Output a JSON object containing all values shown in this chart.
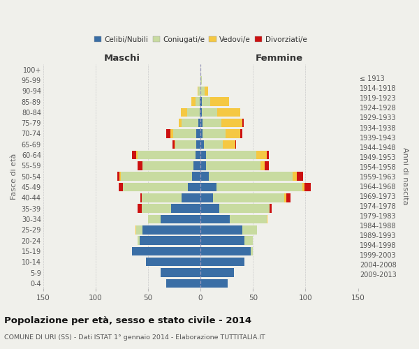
{
  "age_groups": [
    "0-4",
    "5-9",
    "10-14",
    "15-19",
    "20-24",
    "25-29",
    "30-34",
    "35-39",
    "40-44",
    "45-49",
    "50-54",
    "55-59",
    "60-64",
    "65-69",
    "70-74",
    "75-79",
    "80-84",
    "85-89",
    "90-94",
    "95-99",
    "100+"
  ],
  "birth_years": [
    "2009-2013",
    "2004-2008",
    "1999-2003",
    "1994-1998",
    "1989-1993",
    "1984-1988",
    "1979-1983",
    "1974-1978",
    "1969-1973",
    "1964-1968",
    "1959-1963",
    "1954-1958",
    "1949-1953",
    "1944-1948",
    "1939-1943",
    "1934-1938",
    "1929-1933",
    "1924-1928",
    "1919-1923",
    "1914-1918",
    "≤ 1913"
  ],
  "male": {
    "celibi": [
      33,
      38,
      52,
      65,
      58,
      55,
      38,
      28,
      18,
      12,
      8,
      7,
      5,
      4,
      4,
      2,
      1,
      1,
      0,
      0,
      0
    ],
    "coniugati": [
      0,
      0,
      0,
      0,
      2,
      6,
      12,
      28,
      38,
      62,
      68,
      48,
      55,
      20,
      22,
      16,
      12,
      4,
      2,
      0,
      0
    ],
    "vedovi": [
      0,
      0,
      0,
      0,
      0,
      1,
      0,
      0,
      0,
      0,
      1,
      0,
      1,
      1,
      3,
      3,
      6,
      4,
      1,
      0,
      0
    ],
    "divorziati": [
      0,
      0,
      0,
      0,
      0,
      0,
      0,
      4,
      1,
      4,
      2,
      5,
      4,
      2,
      4,
      0,
      0,
      0,
      0,
      0,
      0
    ]
  },
  "female": {
    "nubili": [
      26,
      32,
      42,
      48,
      42,
      40,
      28,
      18,
      12,
      15,
      8,
      5,
      5,
      3,
      2,
      2,
      1,
      1,
      0,
      0,
      0
    ],
    "coniugate": [
      0,
      0,
      0,
      2,
      8,
      14,
      35,
      48,
      68,
      82,
      80,
      52,
      48,
      18,
      22,
      18,
      15,
      8,
      4,
      1,
      0
    ],
    "vedove": [
      0,
      0,
      0,
      0,
      0,
      0,
      1,
      0,
      2,
      2,
      4,
      4,
      10,
      12,
      14,
      20,
      22,
      18,
      3,
      0,
      0
    ],
    "divorziate": [
      0,
      0,
      0,
      0,
      0,
      0,
      0,
      2,
      4,
      6,
      6,
      4,
      2,
      1,
      2,
      1,
      0,
      0,
      0,
      0,
      0
    ]
  },
  "colors": {
    "celibi": "#3a6ea5",
    "coniugati": "#c8dba0",
    "vedovi": "#f5c842",
    "divorziati": "#cc1111"
  },
  "xlim": 150,
  "title": "Popolazione per età, sesso e stato civile - 2014",
  "subtitle": "COMUNE DI URI (SS) - Dati ISTAT 1° gennaio 2014 - Elaborazione TUTTITALIA.IT",
  "ylabel": "Fasce di età",
  "ylabel_right": "Anni di nascita",
  "xlabel_maschi": "Maschi",
  "xlabel_femmine": "Femmine",
  "legend_labels": [
    "Celibi/Nubili",
    "Coniugati/e",
    "Vedovi/e",
    "Divorziati/e"
  ],
  "bg_color": "#f0f0eb"
}
